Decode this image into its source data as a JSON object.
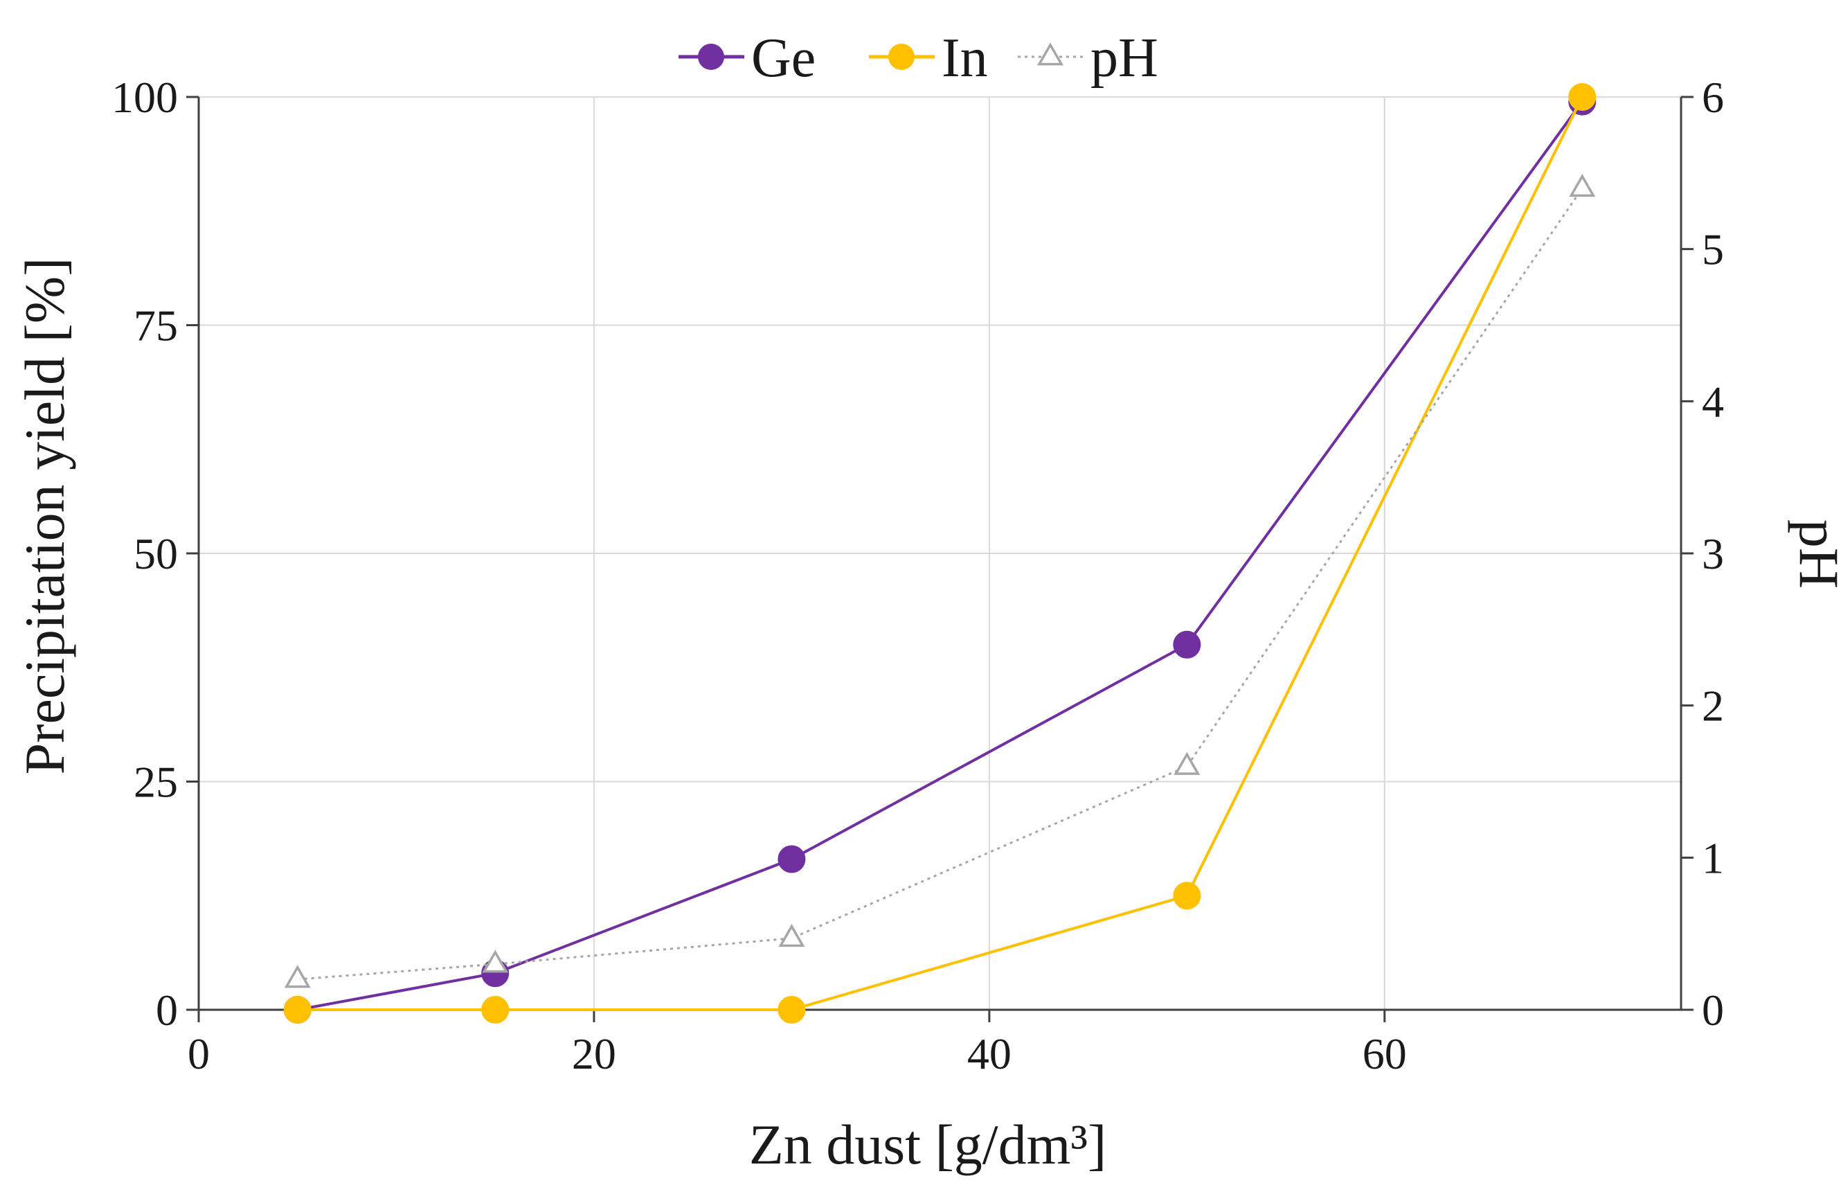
{
  "chart_data": {
    "type": "line",
    "title": "",
    "xlabel": "Zn dust [g/dm³]",
    "ylabel": "Precipitation yield [%]",
    "y2label": "pH",
    "xlim": [
      0,
      75
    ],
    "ylim": [
      0,
      100
    ],
    "y2lim": [
      0,
      6
    ],
    "xticks": [
      0,
      20,
      40,
      60
    ],
    "yticks": [
      0,
      25,
      50,
      75,
      100
    ],
    "y2ticks": [
      0,
      1,
      2,
      3,
      4,
      5,
      6
    ],
    "grid": true,
    "legend_position": "top-center",
    "series": [
      {
        "name": "Ge",
        "axis": "left",
        "color": "#7030a0",
        "marker": "circle",
        "line_style": "solid",
        "x": [
          5,
          15,
          30,
          50,
          70
        ],
        "values": [
          0,
          4,
          16.5,
          40,
          99.5
        ]
      },
      {
        "name": "In",
        "axis": "left",
        "color": "#ffc000",
        "marker": "circle",
        "line_style": "solid",
        "x": [
          5,
          15,
          30,
          50,
          70
        ],
        "values": [
          0,
          0,
          0,
          12.5,
          100
        ]
      },
      {
        "name": "pH",
        "axis": "right",
        "color": "#a6a6a6",
        "marker": "open-triangle",
        "line_style": "dotted",
        "x": [
          5,
          15,
          30,
          50,
          70
        ],
        "values": [
          0.2,
          0.3,
          0.47,
          1.6,
          5.4
        ]
      }
    ]
  }
}
